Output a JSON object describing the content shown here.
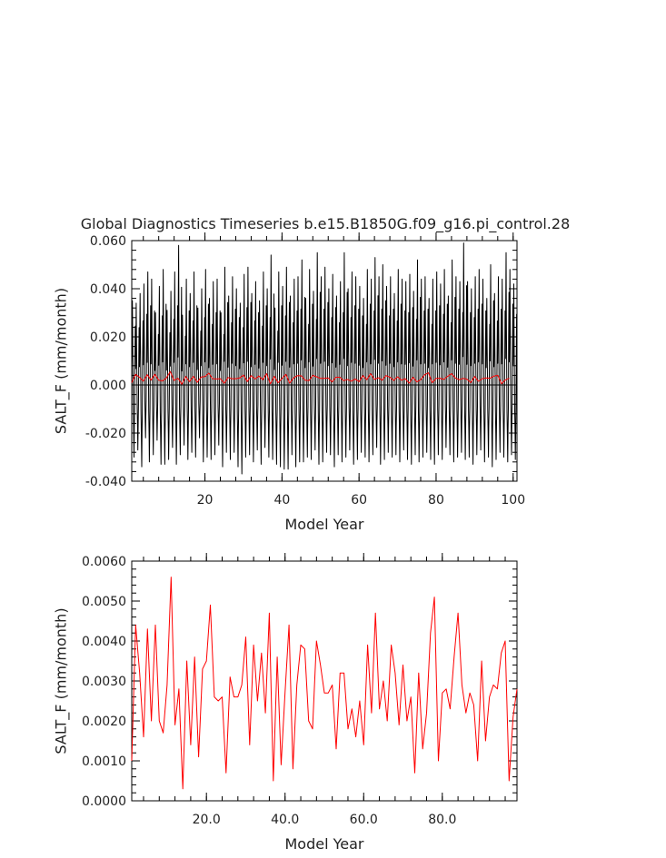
{
  "title": "Global Diagnostics Timeseries b.e15.B1850G.f09_g16.pi_control.28",
  "colors": {
    "monthly": "#000000",
    "annual": "#ff0000",
    "axes": "#000000"
  },
  "chart_data": [
    {
      "type": "line",
      "xlabel": "Model Year",
      "ylabel": "SALT_F (mm/month)",
      "xlim": [
        1,
        101
      ],
      "ylim": [
        -0.04,
        0.06
      ],
      "xticks": [
        20,
        40,
        60,
        80,
        100
      ],
      "xtick_labels": [
        "20",
        "40",
        "60",
        "80",
        "100"
      ],
      "yticks": [
        -0.04,
        -0.02,
        0.0,
        0.02,
        0.04,
        0.06
      ],
      "ytick_labels": [
        "-0.040",
        "-0.020",
        "0.000",
        "0.020",
        "0.040",
        "0.060"
      ],
      "zero_line": true,
      "series": [
        {
          "color": "#000000",
          "sampling": "monthly",
          "per_year_max": [
            0.035,
            0.034,
            0.038,
            0.042,
            0.047,
            0.044,
            0.03,
            0.041,
            0.048,
            0.031,
            0.039,
            0.047,
            0.058,
            0.029,
            0.044,
            0.038,
            0.047,
            0.032,
            0.04,
            0.048,
            0.036,
            0.043,
            0.044,
            0.03,
            0.049,
            0.037,
            0.045,
            0.04,
            0.034,
            0.046,
            0.049,
            0.038,
            0.043,
            0.035,
            0.047,
            0.04,
            0.054,
            0.032,
            0.047,
            0.041,
            0.049,
            0.037,
            0.044,
            0.045,
            0.052,
            0.036,
            0.048,
            0.039,
            0.055,
            0.045,
            0.049,
            0.04,
            0.046,
            0.037,
            0.043,
            0.055,
            0.04,
            0.047,
            0.045,
            0.041,
            0.036,
            0.048,
            0.044,
            0.053,
            0.045,
            0.05,
            0.041,
            0.045,
            0.038,
            0.048,
            0.044,
            0.043,
            0.046,
            0.039,
            0.052,
            0.044,
            0.045,
            0.036,
            0.044,
            0.047,
            0.042,
            0.048,
            0.037,
            0.052,
            0.045,
            0.043,
            0.059,
            0.043,
            0.04,
            0.045,
            0.048,
            0.044,
            0.036,
            0.05,
            0.038,
            0.045,
            0.044,
            0.055,
            0.048,
            0.042,
            0.035
          ],
          "per_year_min": [
            -0.03,
            -0.027,
            -0.034,
            -0.022,
            -0.032,
            -0.029,
            -0.023,
            -0.033,
            -0.033,
            -0.031,
            -0.026,
            -0.033,
            -0.029,
            -0.025,
            -0.031,
            -0.028,
            -0.03,
            -0.022,
            -0.032,
            -0.03,
            -0.031,
            -0.029,
            -0.025,
            -0.034,
            -0.028,
            -0.031,
            -0.028,
            -0.034,
            -0.037,
            -0.03,
            -0.029,
            -0.032,
            -0.027,
            -0.033,
            -0.026,
            -0.03,
            -0.031,
            -0.033,
            -0.034,
            -0.035,
            -0.035,
            -0.029,
            -0.034,
            -0.032,
            -0.032,
            -0.03,
            -0.031,
            -0.027,
            -0.033,
            -0.032,
            -0.028,
            -0.029,
            -0.034,
            -0.029,
            -0.032,
            -0.03,
            -0.027,
            -0.033,
            -0.031,
            -0.028,
            -0.03,
            -0.032,
            -0.029,
            -0.026,
            -0.033,
            -0.031,
            -0.028,
            -0.03,
            -0.029,
            -0.032,
            -0.027,
            -0.031,
            -0.033,
            -0.029,
            -0.032,
            -0.03,
            -0.028,
            -0.031,
            -0.033,
            -0.029,
            -0.031,
            -0.026,
            -0.029,
            -0.032,
            -0.03,
            -0.028,
            -0.031,
            -0.03,
            -0.033,
            -0.029,
            -0.027,
            -0.032,
            -0.03,
            -0.034,
            -0.031,
            -0.028,
            -0.03,
            -0.032,
            -0.029,
            -0.031,
            -0.03
          ]
        },
        {
          "color": "#ff0000",
          "sampling": "annual",
          "x": [
            1,
            2,
            3,
            4,
            5,
            6,
            7,
            8,
            9,
            10,
            11,
            12,
            13,
            14,
            15,
            16,
            17,
            18,
            19,
            20,
            21,
            22,
            23,
            24,
            25,
            26,
            27,
            28,
            29,
            30,
            31,
            32,
            33,
            34,
            35,
            36,
            37,
            38,
            39,
            40,
            41,
            42,
            43,
            44,
            45,
            46,
            47,
            48,
            49,
            50,
            51,
            52,
            53,
            54,
            55,
            56,
            57,
            58,
            59,
            60,
            61,
            62,
            63,
            64,
            65,
            66,
            67,
            68,
            69,
            70,
            71,
            72,
            73,
            74,
            75,
            76,
            77,
            78,
            79,
            80,
            81,
            82,
            83,
            84,
            85,
            86,
            87,
            88,
            89,
            90,
            91,
            92,
            93,
            94,
            95,
            96,
            97,
            98,
            99
          ],
          "values": [
            0.001,
            0.0044,
            0.0032,
            0.0016,
            0.0043,
            0.002,
            0.0044,
            0.002,
            0.0017,
            0.0029,
            0.0056,
            0.0019,
            0.0028,
            0.0003,
            0.0035,
            0.0014,
            0.0036,
            0.0011,
            0.0033,
            0.0035,
            0.0049,
            0.0026,
            0.0025,
            0.0026,
            0.0007,
            0.0031,
            0.0026,
            0.0026,
            0.0029,
            0.0041,
            0.0014,
            0.0039,
            0.0025,
            0.0037,
            0.0022,
            0.0047,
            0.0005,
            0.0036,
            0.0009,
            0.0027,
            0.0044,
            0.0008,
            0.0029,
            0.0039,
            0.0038,
            0.002,
            0.0018,
            0.004,
            0.0034,
            0.0027,
            0.0027,
            0.0029,
            0.0013,
            0.0032,
            0.0032,
            0.0018,
            0.0023,
            0.0016,
            0.0025,
            0.0014,
            0.0039,
            0.0022,
            0.0047,
            0.0023,
            0.003,
            0.002,
            0.0039,
            0.0032,
            0.0019,
            0.0034,
            0.002,
            0.0026,
            0.0007,
            0.0032,
            0.0013,
            0.0022,
            0.0042,
            0.0051,
            0.001,
            0.0027,
            0.0028,
            0.0023,
            0.0036,
            0.0047,
            0.0029,
            0.0022,
            0.0027,
            0.0024,
            0.001,
            0.0035,
            0.0015,
            0.0026,
            0.0029,
            0.0028,
            0.0037,
            0.004,
            0.0005,
            0.0021,
            0.0028
          ]
        }
      ]
    },
    {
      "type": "line",
      "xlabel": "Model Year",
      "ylabel": "SALT_F (mm/month)",
      "xlim": [
        1,
        99
      ],
      "ylim": [
        0.0,
        0.006
      ],
      "xticks": [
        20,
        40,
        60,
        80
      ],
      "xtick_labels": [
        "20.0",
        "40.0",
        "60.0",
        "80.0"
      ],
      "yticks": [
        0.0,
        0.001,
        0.002,
        0.003,
        0.004,
        0.005,
        0.006
      ],
      "ytick_labels": [
        "0.0000",
        "0.0010",
        "0.0020",
        "0.0030",
        "0.0040",
        "0.0050",
        "0.0060"
      ],
      "zero_line": false,
      "series": [
        {
          "color": "#ff0000",
          "x": [
            1,
            2,
            3,
            4,
            5,
            6,
            7,
            8,
            9,
            10,
            11,
            12,
            13,
            14,
            15,
            16,
            17,
            18,
            19,
            20,
            21,
            22,
            23,
            24,
            25,
            26,
            27,
            28,
            29,
            30,
            31,
            32,
            33,
            34,
            35,
            36,
            37,
            38,
            39,
            40,
            41,
            42,
            43,
            44,
            45,
            46,
            47,
            48,
            49,
            50,
            51,
            52,
            53,
            54,
            55,
            56,
            57,
            58,
            59,
            60,
            61,
            62,
            63,
            64,
            65,
            66,
            67,
            68,
            69,
            70,
            71,
            72,
            73,
            74,
            75,
            76,
            77,
            78,
            79,
            80,
            81,
            82,
            83,
            84,
            85,
            86,
            87,
            88,
            89,
            90,
            91,
            92,
            93,
            94,
            95,
            96,
            97,
            98,
            99
          ],
          "values": [
            0.001,
            0.0044,
            0.0032,
            0.0016,
            0.0043,
            0.002,
            0.0044,
            0.002,
            0.0017,
            0.0029,
            0.0056,
            0.0019,
            0.0028,
            0.0003,
            0.0035,
            0.0014,
            0.0036,
            0.0011,
            0.0033,
            0.0035,
            0.0049,
            0.0026,
            0.0025,
            0.0026,
            0.0007,
            0.0031,
            0.0026,
            0.0026,
            0.0029,
            0.0041,
            0.0014,
            0.0039,
            0.0025,
            0.0037,
            0.0022,
            0.0047,
            0.0005,
            0.0036,
            0.0009,
            0.0027,
            0.0044,
            0.0008,
            0.0029,
            0.0039,
            0.0038,
            0.002,
            0.0018,
            0.004,
            0.0034,
            0.0027,
            0.0027,
            0.0029,
            0.0013,
            0.0032,
            0.0032,
            0.0018,
            0.0023,
            0.0016,
            0.0025,
            0.0014,
            0.0039,
            0.0022,
            0.0047,
            0.0023,
            0.003,
            0.002,
            0.0039,
            0.0032,
            0.0019,
            0.0034,
            0.002,
            0.0026,
            0.0007,
            0.0032,
            0.0013,
            0.0022,
            0.0042,
            0.0051,
            0.001,
            0.0027,
            0.0028,
            0.0023,
            0.0036,
            0.0047,
            0.0029,
            0.0022,
            0.0027,
            0.0024,
            0.001,
            0.0035,
            0.0015,
            0.0026,
            0.0029,
            0.0028,
            0.0037,
            0.004,
            0.0005,
            0.0021,
            0.0028
          ]
        }
      ]
    }
  ]
}
